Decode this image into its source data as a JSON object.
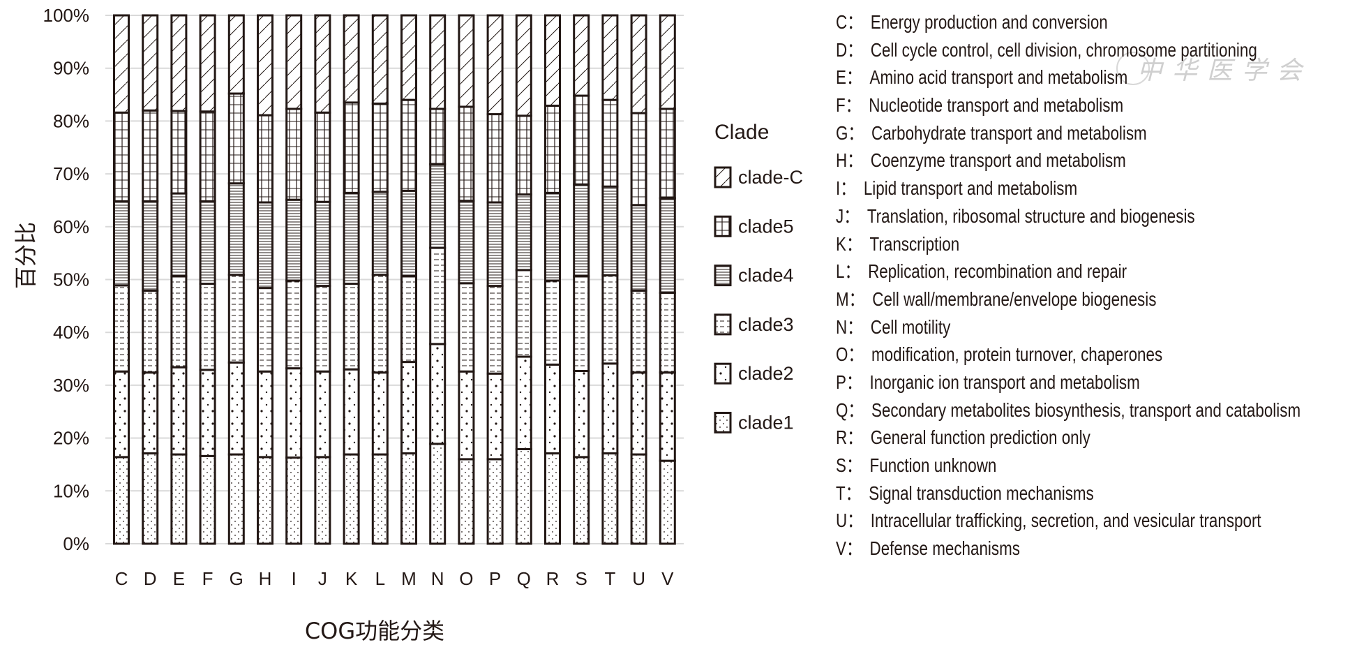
{
  "chart_data": {
    "type": "bar",
    "stacked": true,
    "normalized": true,
    "title": "",
    "xlabel": "COG功能分类",
    "ylabel": "百分比",
    "ylim": [
      0,
      100
    ],
    "yticks": [
      "0%",
      "10%",
      "20%",
      "30%",
      "40%",
      "50%",
      "60%",
      "70%",
      "80%",
      "90%",
      "100%"
    ],
    "grid": true,
    "legend_title": "Clade",
    "legend_position": "right",
    "categories": [
      "C",
      "D",
      "E",
      "F",
      "G",
      "H",
      "I",
      "J",
      "K",
      "L",
      "M",
      "N",
      "O",
      "P",
      "Q",
      "R",
      "S",
      "T",
      "U",
      "V"
    ],
    "series": [
      {
        "name": "clade1",
        "pattern": "dotted-diagonal",
        "values": [
          16.4,
          17.1,
          16.9,
          16.6,
          16.9,
          16.4,
          16.3,
          16.4,
          16.9,
          16.9,
          17.1,
          18.9,
          16.0,
          16.0,
          17.9,
          17.1,
          16.4,
          17.1,
          16.9,
          15.7
        ]
      },
      {
        "name": "clade2",
        "pattern": "sparse-dots",
        "values": [
          16.2,
          15.3,
          16.5,
          16.3,
          17.4,
          16.2,
          16.9,
          16.2,
          16.1,
          15.5,
          17.3,
          18.9,
          16.6,
          16.2,
          17.5,
          16.8,
          16.3,
          17.0,
          15.5,
          16.7
        ]
      },
      {
        "name": "clade3",
        "pattern": "dashes",
        "values": [
          16.3,
          15.5,
          17.2,
          16.3,
          16.6,
          15.8,
          16.6,
          16.2,
          16.2,
          18.5,
          16.2,
          18.2,
          16.7,
          16.6,
          16.4,
          15.9,
          17.9,
          16.7,
          15.5,
          15.1
        ]
      },
      {
        "name": "clade4",
        "pattern": "horizontal-lines",
        "values": [
          15.9,
          16.9,
          15.7,
          15.6,
          17.3,
          16.2,
          15.3,
          15.9,
          17.2,
          15.7,
          16.2,
          15.8,
          15.6,
          15.8,
          14.3,
          16.6,
          17.4,
          16.8,
          16.2,
          17.9
        ]
      },
      {
        "name": "clade5",
        "pattern": "grid",
        "values": [
          16.8,
          17.2,
          15.6,
          17.0,
          17.0,
          16.5,
          17.2,
          16.9,
          17.1,
          16.7,
          17.2,
          10.5,
          17.8,
          16.7,
          14.9,
          16.5,
          16.8,
          16.4,
          17.4,
          16.9
        ]
      },
      {
        "name": "clade-C",
        "pattern": "diagonal-lines",
        "values": [
          18.4,
          18.0,
          18.1,
          18.2,
          14.8,
          18.9,
          17.7,
          18.4,
          16.5,
          16.7,
          16.0,
          17.7,
          17.3,
          18.7,
          19.0,
          17.1,
          15.2,
          16.0,
          18.5,
          17.7
        ]
      }
    ],
    "legend_order": [
      "clade-C",
      "clade5",
      "clade4",
      "clade3",
      "clade2",
      "clade1"
    ],
    "colors": {
      "outline": "#231815",
      "grid": "#d9d9d9",
      "text": "#231815"
    }
  },
  "cog_descriptions": [
    {
      "code": "C：",
      "desc": "Energy production and conversion"
    },
    {
      "code": "D：",
      "desc": "Cell cycle control, cell division, chromosome partitioning"
    },
    {
      "code": "E：",
      "desc": "Amino acid transport and metabolism"
    },
    {
      "code": "F：",
      "desc": "Nucleotide transport and metabolism"
    },
    {
      "code": "G：",
      "desc": "Carbohydrate transport and metabolism"
    },
    {
      "code": "H：",
      "desc": "Coenzyme transport and metabolism"
    },
    {
      "code": "I：",
      "desc": "Lipid transport and metabolism"
    },
    {
      "code": "J：",
      "desc": "Translation, ribosomal structure and biogenesis"
    },
    {
      "code": "K：",
      "desc": "Transcription"
    },
    {
      "code": "L：",
      "desc": "Replication, recombination and repair"
    },
    {
      "code": "M：",
      "desc": "Cell wall/membrane/envelope biogenesis"
    },
    {
      "code": "N：",
      "desc": "Cell motility"
    },
    {
      "code": "O：",
      "desc": "modification, protein turnover, chaperones"
    },
    {
      "code": "P：",
      "desc": "Inorganic ion transport and metabolism"
    },
    {
      "code": "Q：",
      "desc": "Secondary metabolites biosynthesis, transport and catabolism"
    },
    {
      "code": "R：",
      "desc": "General function prediction only"
    },
    {
      "code": "S：",
      "desc": "Function unknown"
    },
    {
      "code": "T：",
      "desc": "Signal transduction mechanisms"
    },
    {
      "code": "U：",
      "desc": "Intracellular trafficking,  secretion, and vesicular transport"
    },
    {
      "code": "V：",
      "desc": "Defense mechanisms"
    }
  ],
  "watermark": "中华医学会"
}
